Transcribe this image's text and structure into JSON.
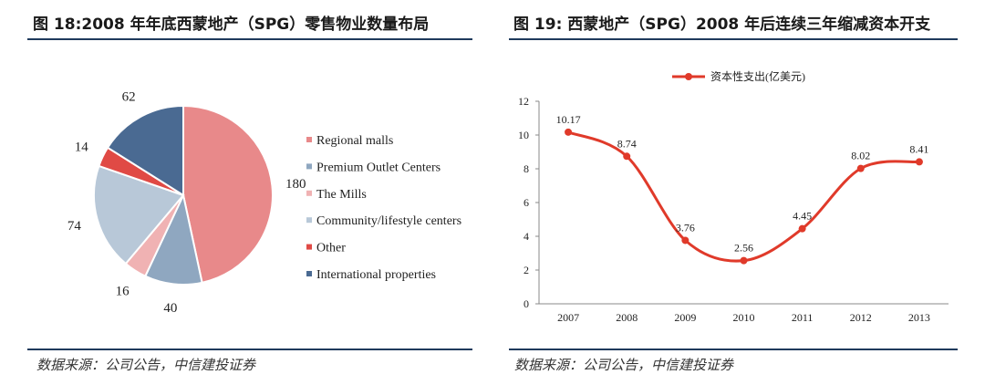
{
  "left": {
    "title": "图 18:2008 年年底西蒙地产（SPG）零售物业数量布局",
    "source": "数据来源：公司公告，中信建投证券"
  },
  "right": {
    "title": "图 19: 西蒙地产（SPG）2008 年后连续三年缩减资本开支",
    "source": "数据来源：公司公告，中信建投证券"
  },
  "chart_data": [
    {
      "type": "pie",
      "categories": [
        "Regional malls",
        "Premium Outlet Centers",
        "The Mills",
        "Community/lifestyle centers",
        "Other",
        "International properties"
      ],
      "values": [
        180,
        40,
        16,
        74,
        14,
        62
      ],
      "colors": [
        "#e8898a",
        "#8fa7c0",
        "#f0b2b3",
        "#b8c8d8",
        "#e04a45",
        "#4a6a92"
      ],
      "legend_position": "right"
    },
    {
      "type": "line",
      "x": [
        "2007",
        "2008",
        "2009",
        "2010",
        "2011",
        "2012",
        "2013"
      ],
      "series": [
        {
          "name": "资本性支出(亿美元)",
          "values": [
            10.17,
            8.74,
            3.76,
            2.56,
            4.45,
            8.02,
            8.41
          ],
          "color": "#e03a2a"
        }
      ],
      "ylim": [
        0,
        12
      ],
      "yticks": [
        "0",
        "2",
        "4",
        "6",
        "8",
        "10",
        "12"
      ],
      "grid": false,
      "legend_position": "top"
    }
  ]
}
